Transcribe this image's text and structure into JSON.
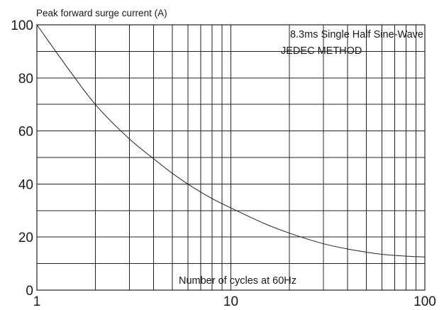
{
  "chart_data": {
    "type": "line",
    "ylabel": "Peak forward surge current (A)",
    "xlabel": "Number of cycles at 60Hz",
    "annotations": [
      "8.3ms Single Half Sine-Wave",
      "JEDEC METHOD"
    ],
    "x_scale": "log",
    "xlim": [
      1,
      100
    ],
    "ylim": [
      0,
      100
    ],
    "x_ticks": [
      "1",
      "10",
      "100"
    ],
    "y_ticks": [
      "0",
      "20",
      "40",
      "60",
      "80",
      "100"
    ],
    "y_tick_values": [
      0,
      20,
      40,
      60,
      80,
      100
    ],
    "grid": true,
    "series": [
      {
        "x": [
          1,
          1.5,
          2,
          3,
          4,
          5,
          6,
          8,
          10,
          15,
          20,
          30,
          40,
          50,
          60,
          80,
          100
        ],
        "y": [
          100,
          82,
          70,
          57,
          49.5,
          44,
          40,
          34.5,
          31,
          25,
          21.5,
          17.5,
          15.5,
          14.3,
          13.5,
          12.8,
          12.5
        ]
      }
    ]
  }
}
